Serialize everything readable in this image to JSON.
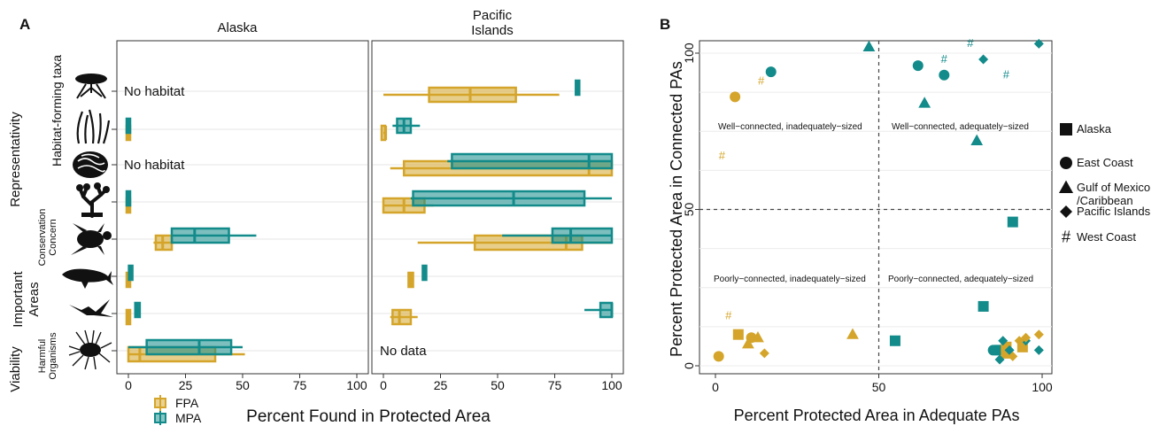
{
  "colors": {
    "FPA": "#D4A52A",
    "MPA": "#138B8B"
  },
  "icons": [
    "mangrove-icon",
    "seagrass-icon",
    "coral-icon",
    "deep-coral-icon",
    "sea-turtle-icon",
    "whale-icon",
    "seabird-icon",
    "lionfish-icon"
  ],
  "panel_a": {
    "letter": "A",
    "facets": [
      "Alaska",
      "Pacific\nIslands"
    ],
    "xlabel": "Percent Found in Protected Area",
    "ticks": [
      "0",
      "25",
      "50",
      "75",
      "100"
    ],
    "row_groups": [
      {
        "label": "Representativity"
      },
      {
        "label": "Habitat-forming taxa"
      },
      {
        "label": "Conservation\nConcern"
      },
      {
        "label": "Important\nAreas"
      },
      {
        "label": "Viability"
      },
      {
        "label": "Harmful\nOrganisms"
      }
    ],
    "annotations": {
      "alaska_row1": "No habitat",
      "alaska_row3": "No habitat",
      "pacific_row8": "No data"
    },
    "legend": [
      {
        "label": "FPA",
        "color": "#D4A52A"
      },
      {
        "label": "MPA",
        "color": "#138B8B"
      }
    ]
  },
  "panel_b": {
    "letter": "B",
    "xlabel": "Percent Protected Area in Adequate PAs",
    "ylabel": "Percent Protected Area in Connected PAs",
    "xticks": [
      "0",
      "50",
      "100"
    ],
    "yticks": [
      "0",
      "50",
      "100"
    ],
    "quadrants": {
      "tl": "Well−connected, inadequately−sized",
      "tr": "Well−connected, adequately−sized",
      "bl": "Poorly−connected, inadequately−sized",
      "br": "Poorly−connected, adequately−sized"
    },
    "legend": [
      {
        "label": "Alaska",
        "shape": "square"
      },
      {
        "label": "East Coast",
        "shape": "circle"
      },
      {
        "label": "Gulf of Mexico\n/Caribbean",
        "shape": "triangle"
      },
      {
        "label": "Pacific Islands",
        "shape": "diamond"
      },
      {
        "label": "West Coast",
        "shape": "hash"
      }
    ]
  },
  "chart_data": [
    {
      "type": "boxplot",
      "x_range": [
        0,
        100
      ],
      "facets": [
        "Alaska",
        "Pacific Islands"
      ],
      "rows": 8,
      "boxes": [
        {
          "facet": 0,
          "row": 2,
          "series": "FPA",
          "min": 0,
          "q1": 0,
          "median": 0,
          "q3": 0,
          "max": 0
        },
        {
          "facet": 0,
          "row": 2,
          "series": "MPA",
          "min": 0,
          "q1": 0,
          "median": 0,
          "q3": 0,
          "max": 0
        },
        {
          "facet": 0,
          "row": 4,
          "series": "FPA",
          "min": 0,
          "q1": 0,
          "median": 0,
          "q3": 0,
          "max": 0
        },
        {
          "facet": 0,
          "row": 4,
          "series": "MPA",
          "min": 0,
          "q1": 0,
          "median": 0,
          "q3": 0,
          "max": 0
        },
        {
          "facet": 0,
          "row": 5,
          "series": "FPA",
          "min": 11,
          "q1": 12,
          "median": 15,
          "q3": 19,
          "max": 20
        },
        {
          "facet": 0,
          "row": 5,
          "series": "MPA",
          "min": 19,
          "q1": 19,
          "median": 29,
          "q3": 44,
          "max": 56
        },
        {
          "facet": 0,
          "row": 6,
          "series": "FPA",
          "min": 0,
          "q1": 0,
          "median": 0,
          "q3": 0,
          "max": 0
        },
        {
          "facet": 0,
          "row": 6,
          "series": "MPA",
          "min": 1,
          "q1": 1,
          "median": 1,
          "q3": 1,
          "max": 1
        },
        {
          "facet": 0,
          "row": 7,
          "series": "FPA",
          "min": 0,
          "q1": 0,
          "median": 0,
          "q3": 0,
          "max": 0
        },
        {
          "facet": 0,
          "row": 7,
          "series": "MPA",
          "min": 3,
          "q1": 3,
          "median": 4,
          "q3": 5,
          "max": 5
        },
        {
          "facet": 0,
          "row": 8,
          "series": "FPA",
          "min": 0,
          "q1": 0,
          "median": 5,
          "q3": 38,
          "max": 51
        },
        {
          "facet": 0,
          "row": 8,
          "series": "MPA",
          "min": 0,
          "q1": 8,
          "median": 31,
          "q3": 45,
          "max": 50
        },
        {
          "facet": 1,
          "row": 1,
          "series": "FPA",
          "min": 0,
          "q1": 20,
          "median": 38,
          "q3": 58,
          "max": 77
        },
        {
          "facet": 1,
          "row": 1,
          "series": "MPA",
          "min": 85,
          "q1": 85,
          "median": 85,
          "q3": 85,
          "max": 85
        },
        {
          "facet": 1,
          "row": 2,
          "series": "FPA",
          "min": 0,
          "q1": 0,
          "median": 1,
          "q3": 1,
          "max": 1
        },
        {
          "facet": 1,
          "row": 2,
          "series": "MPA",
          "min": 4,
          "q1": 6,
          "median": 9,
          "q3": 12,
          "max": 16
        },
        {
          "facet": 1,
          "row": 3,
          "series": "FPA",
          "min": 3,
          "q1": 9,
          "median": 90,
          "q3": 100,
          "max": 100
        },
        {
          "facet": 1,
          "row": 3,
          "series": "MPA",
          "min": 28,
          "q1": 30,
          "median": 90,
          "q3": 100,
          "max": 100
        },
        {
          "facet": 1,
          "row": 4,
          "series": "FPA",
          "min": 0,
          "q1": 0,
          "median": 9,
          "q3": 18,
          "max": 22
        },
        {
          "facet": 1,
          "row": 4,
          "series": "MPA",
          "min": 12,
          "q1": 13,
          "median": 57,
          "q3": 88,
          "max": 100
        },
        {
          "facet": 1,
          "row": 5,
          "series": "FPA",
          "min": 15,
          "q1": 40,
          "median": 80,
          "q3": 87,
          "max": 100
        },
        {
          "facet": 1,
          "row": 5,
          "series": "MPA",
          "min": 52,
          "q1": 74,
          "median": 82,
          "q3": 100,
          "max": 100
        },
        {
          "facet": 1,
          "row": 6,
          "series": "FPA",
          "min": 11,
          "q1": 11,
          "median": 12,
          "q3": 13,
          "max": 13
        },
        {
          "facet": 1,
          "row": 6,
          "series": "MPA",
          "min": 18,
          "q1": 18,
          "median": 18,
          "q3": 18,
          "max": 18
        },
        {
          "facet": 1,
          "row": 7,
          "series": "FPA",
          "min": 3,
          "q1": 4,
          "median": 7,
          "q3": 12,
          "max": 15
        },
        {
          "facet": 1,
          "row": 7,
          "series": "MPA",
          "min": 88,
          "q1": 95,
          "median": 100,
          "q3": 100,
          "max": 100
        }
      ]
    },
    {
      "type": "scatter",
      "x_range": [
        0,
        100
      ],
      "y_range": [
        0,
        100
      ],
      "points": [
        {
          "x": 7,
          "y": 10,
          "region": "Alaska",
          "series": "FPA"
        },
        {
          "x": 55,
          "y": 8,
          "region": "Alaska",
          "series": "MPA"
        },
        {
          "x": 82,
          "y": 19,
          "region": "Alaska",
          "series": "MPA"
        },
        {
          "x": 91,
          "y": 46,
          "region": "Alaska",
          "series": "MPA"
        },
        {
          "x": 87,
          "y": 5,
          "region": "Alaska",
          "series": "MPA"
        },
        {
          "x": 89,
          "y": 4,
          "region": "Alaska",
          "series": "FPA"
        },
        {
          "x": 94,
          "y": 6,
          "region": "Alaska",
          "series": "FPA"
        },
        {
          "x": 89,
          "y": 6,
          "region": "Alaska",
          "series": "FPA"
        },
        {
          "x": 1,
          "y": 3,
          "region": "East Coast",
          "series": "FPA"
        },
        {
          "x": 6,
          "y": 86,
          "region": "East Coast",
          "series": "FPA"
        },
        {
          "x": 11,
          "y": 9,
          "region": "East Coast",
          "series": "FPA"
        },
        {
          "x": 17,
          "y": 94,
          "region": "East Coast",
          "series": "MPA"
        },
        {
          "x": 62,
          "y": 96,
          "region": "East Coast",
          "series": "MPA"
        },
        {
          "x": 70,
          "y": 93,
          "region": "East Coast",
          "series": "MPA"
        },
        {
          "x": 85,
          "y": 5,
          "region": "East Coast",
          "series": "MPA"
        },
        {
          "x": 10,
          "y": 7,
          "region": "Gulf of Mexico/Caribbean",
          "series": "FPA"
        },
        {
          "x": 13,
          "y": 9,
          "region": "Gulf of Mexico/Caribbean",
          "series": "FPA"
        },
        {
          "x": 42,
          "y": 10,
          "region": "Gulf of Mexico/Caribbean",
          "series": "FPA"
        },
        {
          "x": 47,
          "y": 102,
          "region": "Gulf of Mexico/Caribbean",
          "series": "MPA"
        },
        {
          "x": 64,
          "y": 84,
          "region": "Gulf of Mexico/Caribbean",
          "series": "MPA"
        },
        {
          "x": 80,
          "y": 72,
          "region": "Gulf of Mexico/Caribbean",
          "series": "MPA"
        },
        {
          "x": 15,
          "y": 4,
          "region": "Pacific Islands",
          "series": "FPA"
        },
        {
          "x": 82,
          "y": 98,
          "region": "Pacific Islands",
          "series": "MPA"
        },
        {
          "x": 99,
          "y": 103,
          "region": "Pacific Islands",
          "series": "MPA"
        },
        {
          "x": 87,
          "y": 2,
          "region": "Pacific Islands",
          "series": "MPA"
        },
        {
          "x": 88,
          "y": 8,
          "region": "Pacific Islands",
          "series": "MPA"
        },
        {
          "x": 90,
          "y": 5,
          "region": "Pacific Islands",
          "series": "MPA"
        },
        {
          "x": 95,
          "y": 8,
          "region": "Pacific Islands",
          "series": "MPA"
        },
        {
          "x": 99,
          "y": 5,
          "region": "Pacific Islands",
          "series": "MPA"
        },
        {
          "x": 93,
          "y": 8,
          "region": "Pacific Islands",
          "series": "FPA"
        },
        {
          "x": 99,
          "y": 10,
          "region": "Pacific Islands",
          "series": "FPA"
        },
        {
          "x": 91,
          "y": 3,
          "region": "Pacific Islands",
          "series": "FPA"
        },
        {
          "x": 95,
          "y": 9,
          "region": "Pacific Islands",
          "series": "FPA"
        },
        {
          "x": 2,
          "y": 67,
          "region": "West Coast",
          "series": "FPA"
        },
        {
          "x": 14,
          "y": 91,
          "region": "West Coast",
          "series": "FPA"
        },
        {
          "x": 4,
          "y": 16,
          "region": "West Coast",
          "series": "FPA"
        },
        {
          "x": 70,
          "y": 98,
          "region": "West Coast",
          "series": "MPA"
        },
        {
          "x": 78,
          "y": 103,
          "region": "West Coast",
          "series": "MPA"
        },
        {
          "x": 89,
          "y": 93,
          "region": "West Coast",
          "series": "MPA"
        }
      ]
    }
  ]
}
